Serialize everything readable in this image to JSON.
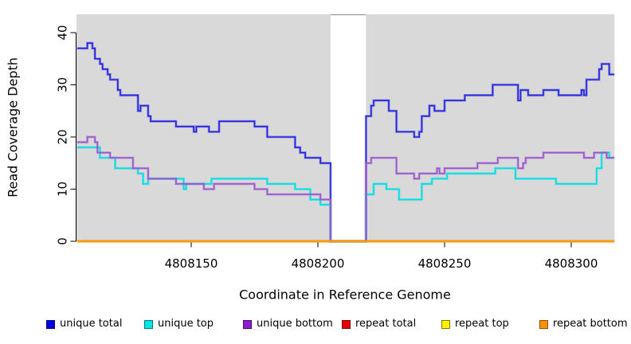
{
  "chart_data": {
    "type": "line",
    "subtype": "step-coverage",
    "title": "",
    "xlabel": "Coordinate in Reference Genome",
    "ylabel": "Read Coverage Depth",
    "xlim": [
      4808105,
      4808317
    ],
    "ylim": [
      0,
      43.5
    ],
    "x_ticks": [
      4808150,
      4808200,
      4808250,
      4808300
    ],
    "y_ticks": [
      0,
      10,
      20,
      30,
      40
    ],
    "grid": false,
    "plot_background": "#d9d9d9",
    "gap": {
      "x_start": 4808205,
      "x_end": 4808219,
      "fill": "#ffffff"
    },
    "legend_position": "bottom",
    "series": [
      {
        "name": "unique total",
        "color": "#2222e0",
        "legend_fill": "#0000e0",
        "legend_border": "#000080",
        "steps": [
          [
            4808105,
            37
          ],
          [
            4808109,
            38
          ],
          [
            4808111,
            37
          ],
          [
            4808112,
            35
          ],
          [
            4808114,
            34
          ],
          [
            4808115,
            33
          ],
          [
            4808117,
            32
          ],
          [
            4808118,
            31
          ],
          [
            4808121,
            29
          ],
          [
            4808122,
            28
          ],
          [
            4808129,
            25
          ],
          [
            4808130,
            26
          ],
          [
            4808133,
            24
          ],
          [
            4808134,
            23
          ],
          [
            4808144,
            22
          ],
          [
            4808151,
            21
          ],
          [
            4808152,
            22
          ],
          [
            4808157,
            21
          ],
          [
            4808161,
            23
          ],
          [
            4808175,
            22
          ],
          [
            4808180,
            20
          ],
          [
            4808191,
            18
          ],
          [
            4808193,
            17
          ],
          [
            4808195,
            16
          ],
          [
            4808201,
            15
          ],
          [
            4808205,
            0
          ],
          [
            4808219,
            24
          ],
          [
            4808221,
            26
          ],
          [
            4808222,
            27
          ],
          [
            4808228,
            25
          ],
          [
            4808231,
            21
          ],
          [
            4808238,
            20
          ],
          [
            4808240,
            21
          ],
          [
            4808241,
            24
          ],
          [
            4808244,
            26
          ],
          [
            4808246,
            25
          ],
          [
            4808250,
            27
          ],
          [
            4808258,
            28
          ],
          [
            4808269,
            30
          ],
          [
            4808279,
            27
          ],
          [
            4808280,
            29
          ],
          [
            4808283,
            28
          ],
          [
            4808289,
            29
          ],
          [
            4808295,
            28
          ],
          [
            4808304,
            29
          ],
          [
            4808305,
            28
          ],
          [
            4808306,
            31
          ],
          [
            4808311,
            33
          ],
          [
            4808312,
            34
          ],
          [
            4808315,
            32
          ]
        ]
      },
      {
        "name": "unique top",
        "color": "#00dde4",
        "legend_fill": "#00e5e5",
        "legend_border": "#007a7a",
        "steps": [
          [
            4808105,
            18
          ],
          [
            4808114,
            16
          ],
          [
            4808120,
            14
          ],
          [
            4808129,
            13
          ],
          [
            4808131,
            11
          ],
          [
            4808133,
            12
          ],
          [
            4808147,
            10
          ],
          [
            4808148,
            11
          ],
          [
            4808158,
            12
          ],
          [
            4808180,
            11
          ],
          [
            4808191,
            10
          ],
          [
            4808197,
            8
          ],
          [
            4808201,
            7
          ],
          [
            4808205,
            0
          ],
          [
            4808219,
            9
          ],
          [
            4808222,
            11
          ],
          [
            4808227,
            10
          ],
          [
            4808232,
            8
          ],
          [
            4808241,
            11
          ],
          [
            4808245,
            12
          ],
          [
            4808251,
            13
          ],
          [
            4808270,
            14
          ],
          [
            4808278,
            12
          ],
          [
            4808294,
            11
          ],
          [
            4808310,
            14
          ],
          [
            4808312,
            17
          ],
          [
            4808315,
            16
          ]
        ]
      },
      {
        "name": "unique bottom",
        "color": "#9a55cf",
        "legend_fill": "#8b20c8",
        "legend_border": "#4b0082",
        "steps": [
          [
            4808105,
            19
          ],
          [
            4808109,
            20
          ],
          [
            4808112,
            19
          ],
          [
            4808113,
            17
          ],
          [
            4808118,
            16
          ],
          [
            4808127,
            14
          ],
          [
            4808133,
            12
          ],
          [
            4808144,
            11
          ],
          [
            4808155,
            10
          ],
          [
            4808159,
            11
          ],
          [
            4808175,
            10
          ],
          [
            4808180,
            9
          ],
          [
            4808201,
            8
          ],
          [
            4808205,
            0
          ],
          [
            4808219,
            15
          ],
          [
            4808221,
            16
          ],
          [
            4808231,
            13
          ],
          [
            4808238,
            12
          ],
          [
            4808240,
            13
          ],
          [
            4808247,
            14
          ],
          [
            4808248,
            13
          ],
          [
            4808250,
            14
          ],
          [
            4808263,
            15
          ],
          [
            4808271,
            16
          ],
          [
            4808279,
            14
          ],
          [
            4808281,
            15
          ],
          [
            4808282,
            16
          ],
          [
            4808289,
            17
          ],
          [
            4808305,
            16
          ],
          [
            4808309,
            17
          ],
          [
            4808314,
            16
          ]
        ]
      },
      {
        "name": "repeat total",
        "color": "#e00000",
        "legend_fill": "#e80000",
        "legend_border": "#7a0000",
        "steps": [
          [
            4808105,
            0
          ]
        ]
      },
      {
        "name": "repeat top",
        "color": "#ffff00",
        "legend_fill": "#fff200",
        "legend_border": "#7a7a00",
        "steps": [
          [
            4808105,
            0
          ]
        ]
      },
      {
        "name": "repeat bottom",
        "color": "#ff9200",
        "legend_fill": "#ff9200",
        "legend_border": "#8a5200",
        "steps": [
          [
            4808105,
            0
          ]
        ]
      }
    ]
  }
}
